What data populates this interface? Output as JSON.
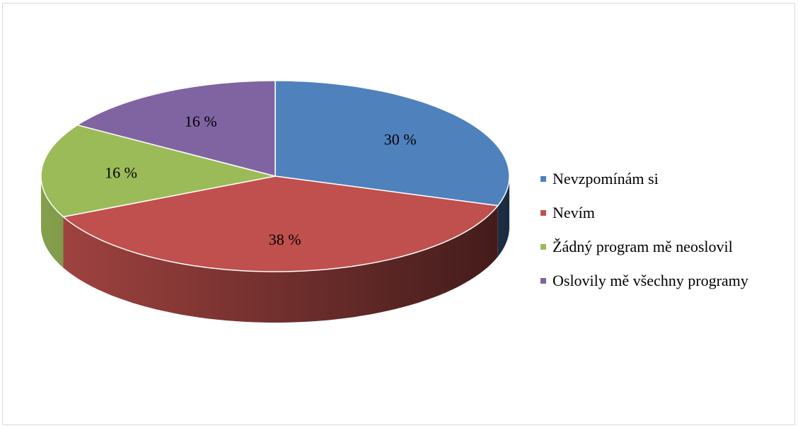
{
  "chart_data": {
    "type": "pie",
    "title": "",
    "categories": [
      "Nevzpomínám si",
      "Nevím",
      "Žádný program mě neoslovil",
      "Oslovily mě všechny programy"
    ],
    "values": [
      30,
      38,
      16,
      16
    ],
    "data_labels": [
      "30 %",
      "38 %",
      "16 %",
      "16 %"
    ],
    "colors": [
      "#4f81bd",
      "#c0504d",
      "#9bbb59",
      "#8064a2"
    ],
    "legend_position": "right",
    "style": "3d"
  }
}
